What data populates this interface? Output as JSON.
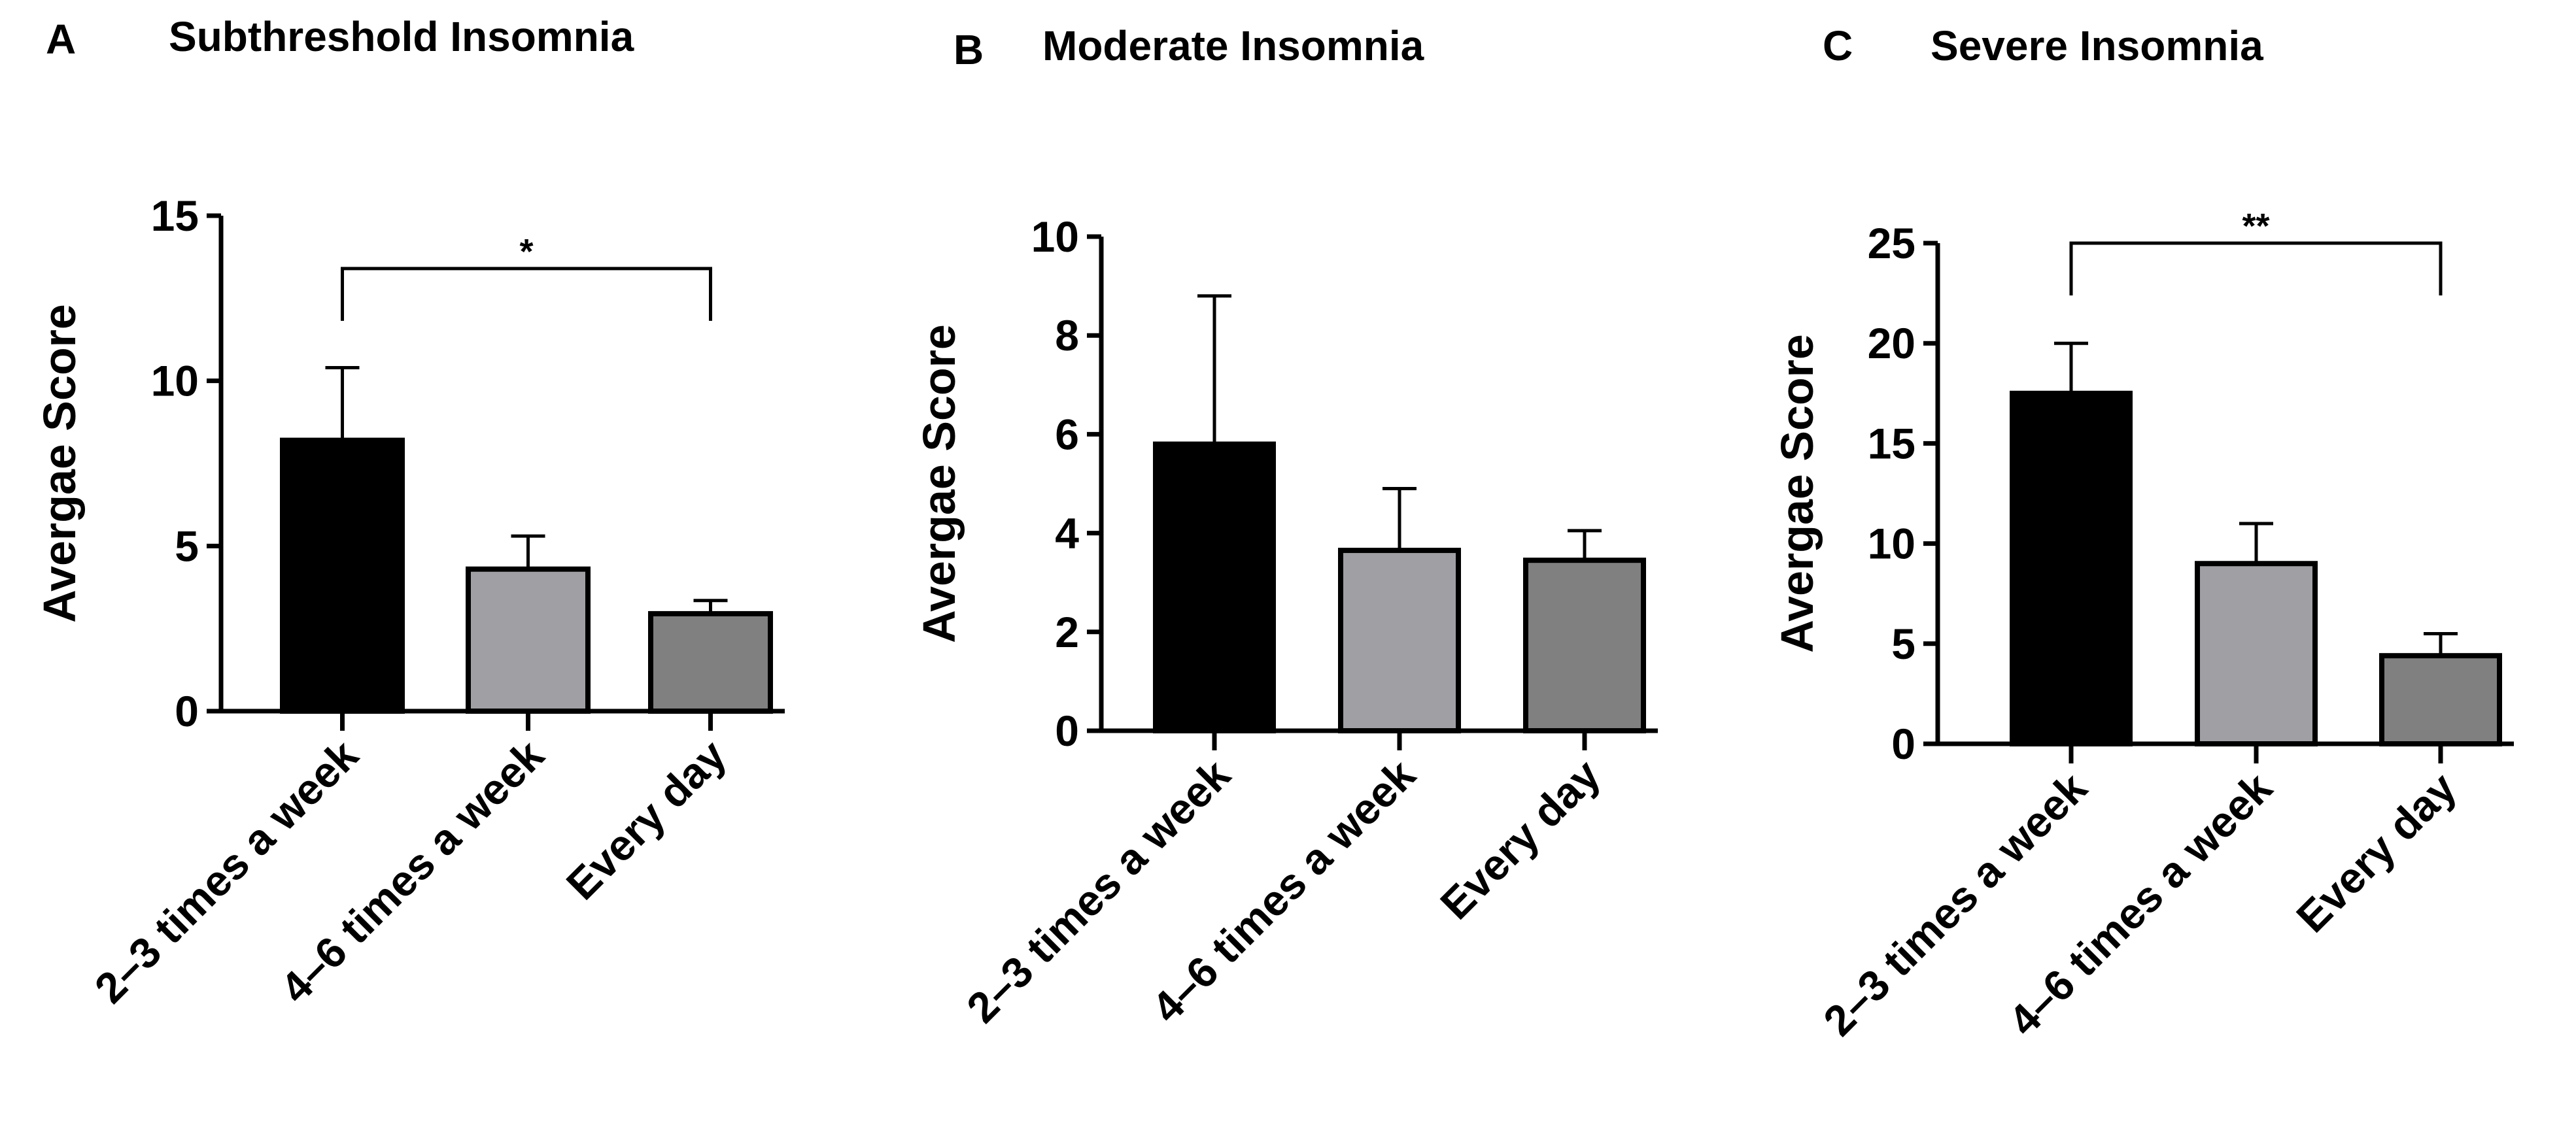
{
  "chart_data": [
    {
      "type": "bar",
      "panel": "A",
      "title": "Subthreshold Insomnia",
      "xlabel": "",
      "ylabel": "Avergae Score",
      "categories": [
        "2–3 times a week",
        "4–6 times a week",
        "Every day"
      ],
      "values": [
        8.2,
        4.3,
        2.95
      ],
      "errors": [
        2.2,
        1.0,
        0.4
      ],
      "colors": [
        "#000000",
        "#a0a0a4",
        "#808080"
      ],
      "ylim": [
        0,
        15
      ],
      "yticks": [
        0,
        5,
        10,
        15
      ],
      "significance": [
        {
          "from": 0,
          "to": 2,
          "label": "*",
          "y": 13.4
        }
      ]
    },
    {
      "type": "bar",
      "panel": "B",
      "title": "Moderate Insomnia",
      "xlabel": "",
      "ylabel": "Avergae Score",
      "categories": [
        "2–3 times a week",
        "4–6 times a week",
        "Every day"
      ],
      "values": [
        5.8,
        3.65,
        3.45
      ],
      "errors": [
        3.0,
        1.25,
        0.6
      ],
      "colors": [
        "#000000",
        "#a0a0a4",
        "#808080"
      ],
      "ylim": [
        0,
        10
      ],
      "yticks": [
        0,
        2,
        4,
        6,
        8,
        10
      ],
      "significance": []
    },
    {
      "type": "bar",
      "panel": "C",
      "title": "Severe Insomnia",
      "xlabel": "",
      "ylabel": "Avergae Score",
      "categories": [
        "2–3 times a week",
        "4–6 times a week",
        "Every day"
      ],
      "values": [
        17.5,
        9.0,
        4.4
      ],
      "errors": [
        2.5,
        2.0,
        1.1
      ],
      "colors": [
        "#000000",
        "#a0a0a4",
        "#808080"
      ],
      "ylim": [
        0,
        25
      ],
      "yticks": [
        0,
        5,
        10,
        15,
        20,
        25
      ],
      "significance": [
        {
          "from": 0,
          "to": 2,
          "label": "**",
          "y": 25
        }
      ]
    }
  ]
}
